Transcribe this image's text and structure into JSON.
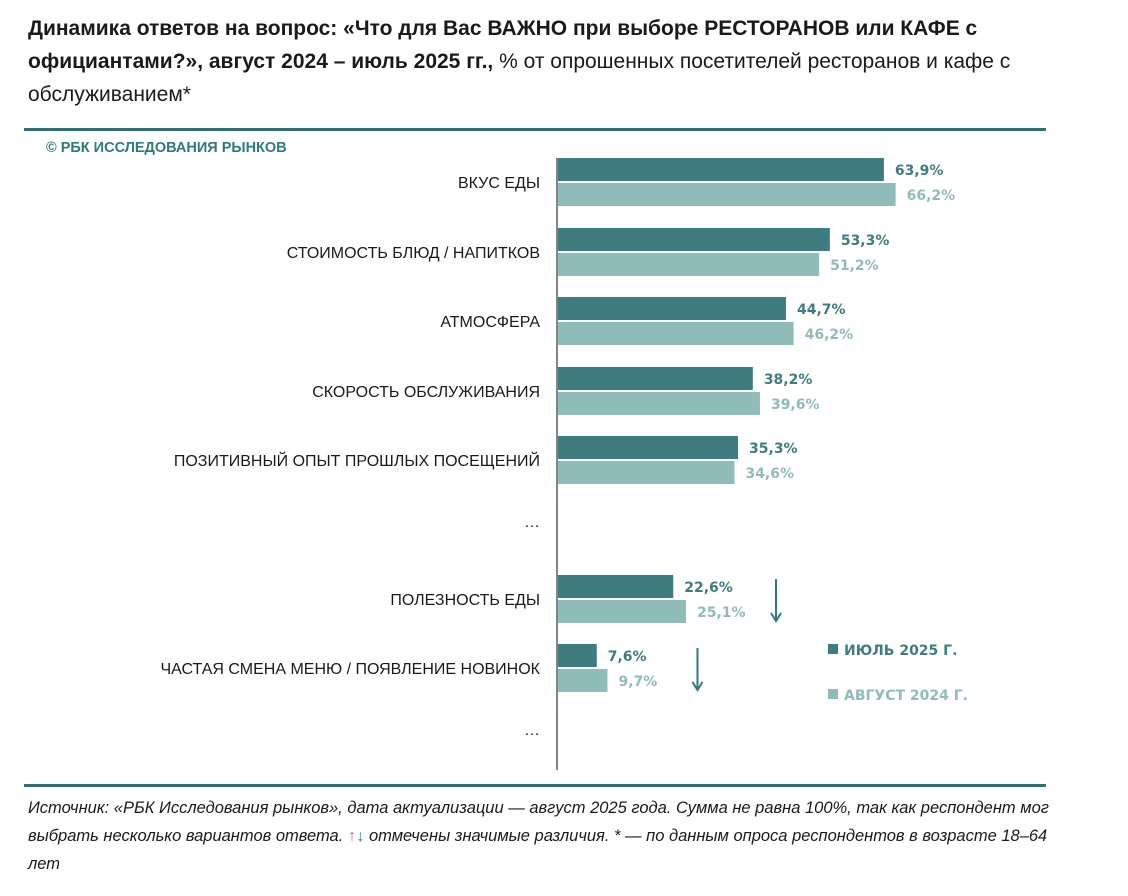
{
  "title": {
    "bold": "Динамика ответов на вопрос: «Что для Вас ВАЖНО при выборе РЕСТОРАНОВ или КАФЕ с официантами?», август 2024 – июль 2025 гг.,",
    "regular": " % от опрошенных посетителей ресторанов и кафе с обслуживанием*"
  },
  "brand": "© РБК ИССЛЕДОВАНИЯ РЫНКОВ",
  "colors": {
    "dark": "#3e7c7f",
    "light": "#8fbcb9",
    "rule": "#2f6f72",
    "arrow_up": "#e8626a",
    "arrow_down": "#2e7a7d"
  },
  "chart_data": {
    "type": "bar",
    "orientation": "horizontal",
    "series": [
      {
        "name": "ИЮЛЬ 2025 Г.",
        "color": "#3e7c7f"
      },
      {
        "name": "АВГУСТ 2024 Г.",
        "color": "#8fbcb9"
      }
    ],
    "rows": [
      {
        "kind": "category",
        "label": "ВКУС ЕДЫ",
        "values": [
          63.9,
          66.2
        ],
        "value_labels": [
          "63,9%",
          "66,2%"
        ],
        "change": ""
      },
      {
        "kind": "category",
        "label": "СТОИМОСТЬ БЛЮД / НАПИТКОВ",
        "values": [
          53.3,
          51.2
        ],
        "value_labels": [
          "53,3%",
          "51,2%"
        ],
        "change": ""
      },
      {
        "kind": "category",
        "label": "АТМОСФЕРА",
        "values": [
          44.7,
          46.2
        ],
        "value_labels": [
          "44,7%",
          "46,2%"
        ],
        "change": ""
      },
      {
        "kind": "category",
        "label": "СКОРОСТЬ ОБСЛУЖИВАНИЯ",
        "values": [
          38.2,
          39.6
        ],
        "value_labels": [
          "38,2%",
          "39,6%"
        ],
        "change": ""
      },
      {
        "kind": "category",
        "label": "ПОЗИТИВНЫЙ ОПЫТ ПРОШЛЫХ ПОСЕЩЕНИЙ",
        "values": [
          35.3,
          34.6
        ],
        "value_labels": [
          "35,3%",
          "34,6%"
        ],
        "change": ""
      },
      {
        "kind": "gap",
        "label": "…"
      },
      {
        "kind": "category",
        "label": "ПОЛЕЗНОСТЬ ЕДЫ",
        "values": [
          22.6,
          25.1
        ],
        "value_labels": [
          "22,6%",
          "25,1%"
        ],
        "change": "down"
      },
      {
        "kind": "category",
        "label": "ЧАСТАЯ СМЕНА МЕНЮ / ПОЯВЛЕНИЕ НОВИНОК",
        "values": [
          7.6,
          9.7
        ],
        "value_labels": [
          "7,6%",
          "9,7%"
        ],
        "change": "down"
      },
      {
        "kind": "gap",
        "label": "…"
      }
    ],
    "xlim": [
      0,
      100
    ],
    "legend_position": "right",
    "grid": false
  },
  "source": {
    "part1": "Источник: «РБК Исследования рынков», дата актуализации — август 2025 года. Сумма не равна 100%, так как респондент мог выбрать несколько вариантов ответа. ",
    "arrow_up": "↑",
    "arrow_down": "↓",
    "part2": " отмечены значимые различия. * — по данным опроса респондентов в возрасте 18–64 лет"
  }
}
